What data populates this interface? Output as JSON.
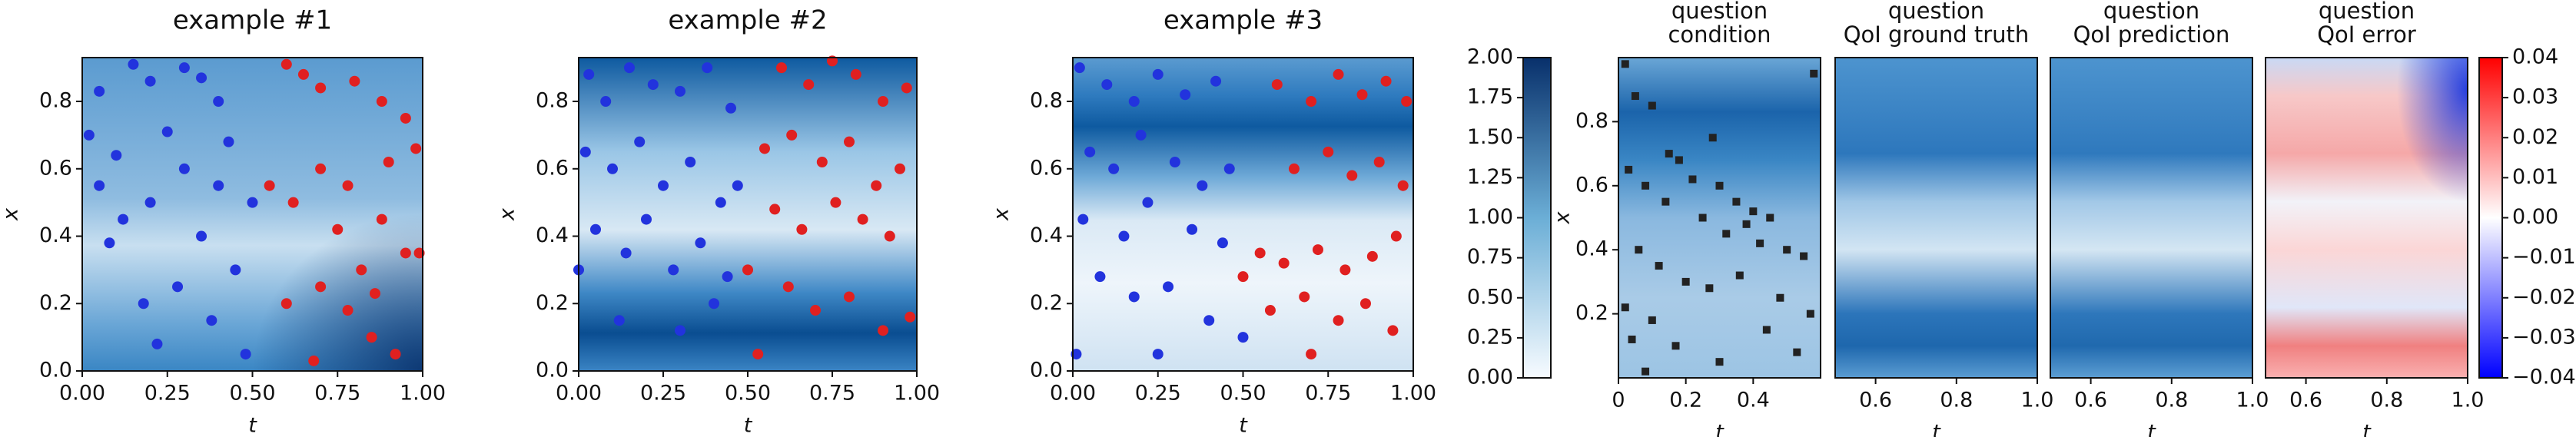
{
  "chart_data": [
    {
      "type": "scatter",
      "title": "example #1",
      "xlabel": "t",
      "ylabel": "x",
      "xlim": [
        0,
        1
      ],
      "ylim": [
        0,
        0.93
      ],
      "xticks": [
        {
          "value": 0,
          "label": "0.00"
        },
        {
          "value": 0.25,
          "label": "0.25"
        },
        {
          "value": 0.5,
          "label": "0.50"
        },
        {
          "value": 0.75,
          "label": "0.75"
        },
        {
          "value": 1,
          "label": "1.00"
        }
      ],
      "yticks": [
        {
          "value": 0,
          "label": "0.0"
        },
        0.2,
        0.4,
        0.6,
        0.8
      ],
      "series": [
        {
          "color": "#2233dd",
          "x": [
            0.05,
            0.1,
            0.15,
            0.2,
            0.3,
            0.35,
            0.4,
            0.25,
            0.05,
            0.12,
            0.2,
            0.3,
            0.4,
            0.08,
            0.18,
            0.28,
            0.35,
            0.45,
            0.38,
            0.48,
            0.22,
            0.5,
            0.02,
            0.43
          ],
          "values": [
            0.83,
            0.64,
            0.91,
            0.86,
            0.9,
            0.87,
            0.8,
            0.71,
            0.55,
            0.45,
            0.5,
            0.6,
            0.55,
            0.38,
            0.2,
            0.25,
            0.4,
            0.3,
            0.15,
            0.05,
            0.08,
            0.5,
            0.7,
            0.68
          ]
        },
        {
          "color": "#e02020",
          "x": [
            0.6,
            0.65,
            0.7,
            0.8,
            0.88,
            0.95,
            0.55,
            0.62,
            0.7,
            0.78,
            0.9,
            0.98,
            0.75,
            0.82,
            0.88,
            0.95,
            0.7,
            0.78,
            0.85,
            0.92,
            0.6,
            0.68,
            0.86,
            0.99
          ],
          "values": [
            0.91,
            0.88,
            0.84,
            0.86,
            0.8,
            0.75,
            0.55,
            0.5,
            0.6,
            0.55,
            0.62,
            0.66,
            0.42,
            0.3,
            0.45,
            0.35,
            0.25,
            0.18,
            0.1,
            0.05,
            0.2,
            0.03,
            0.23,
            0.35
          ]
        }
      ]
    },
    {
      "type": "scatter",
      "title": "example #2",
      "xlabel": "t",
      "ylabel": "x",
      "xlim": [
        0,
        1
      ],
      "ylim": [
        0,
        0.93
      ],
      "xticks": [
        {
          "value": 0,
          "label": "0.00"
        },
        {
          "value": 0.25,
          "label": "0.25"
        },
        {
          "value": 0.5,
          "label": "0.50"
        },
        {
          "value": 0.75,
          "label": "0.75"
        },
        {
          "value": 1,
          "label": "1.00"
        }
      ],
      "yticks": [
        {
          "value": 0,
          "label": "0.0"
        },
        0.2,
        0.4,
        0.6,
        0.8
      ],
      "series": [
        {
          "color": "#2233dd",
          "x": [
            0.03,
            0.08,
            0.15,
            0.22,
            0.3,
            0.38,
            0.45,
            0.02,
            0.1,
            0.18,
            0.25,
            0.33,
            0.42,
            0.05,
            0.14,
            0.2,
            0.28,
            0.36,
            0.44,
            0.12,
            0.3,
            0.4,
            0.0,
            0.47
          ],
          "values": [
            0.88,
            0.8,
            0.9,
            0.85,
            0.83,
            0.9,
            0.78,
            0.65,
            0.6,
            0.68,
            0.55,
            0.62,
            0.5,
            0.42,
            0.35,
            0.45,
            0.3,
            0.38,
            0.28,
            0.15,
            0.12,
            0.2,
            0.3,
            0.55
          ]
        },
        {
          "color": "#e02020",
          "x": [
            0.6,
            0.68,
            0.75,
            0.82,
            0.9,
            0.97,
            0.55,
            0.63,
            0.72,
            0.8,
            0.88,
            0.95,
            0.58,
            0.66,
            0.76,
            0.84,
            0.92,
            0.5,
            0.62,
            0.7,
            0.8,
            0.9,
            0.98,
            0.53
          ],
          "values": [
            0.9,
            0.85,
            0.92,
            0.88,
            0.8,
            0.84,
            0.66,
            0.7,
            0.62,
            0.68,
            0.55,
            0.6,
            0.48,
            0.42,
            0.5,
            0.45,
            0.4,
            0.3,
            0.25,
            0.18,
            0.22,
            0.12,
            0.16,
            0.05
          ]
        }
      ]
    },
    {
      "type": "scatter",
      "title": "example #3",
      "xlabel": "t",
      "ylabel": "x",
      "xlim": [
        0,
        1
      ],
      "ylim": [
        0,
        0.93
      ],
      "xticks": [
        {
          "value": 0,
          "label": "0.00"
        },
        {
          "value": 0.25,
          "label": "0.25"
        },
        {
          "value": 0.5,
          "label": "0.50"
        },
        {
          "value": 0.75,
          "label": "0.75"
        },
        {
          "value": 1,
          "label": "1.00"
        }
      ],
      "yticks": [
        {
          "value": 0,
          "label": "0.0"
        },
        0.2,
        0.4,
        0.6,
        0.8
      ],
      "series": [
        {
          "color": "#2233dd",
          "x": [
            0.02,
            0.1,
            0.18,
            0.25,
            0.33,
            0.42,
            0.05,
            0.12,
            0.2,
            0.3,
            0.38,
            0.46,
            0.03,
            0.15,
            0.22,
            0.35,
            0.44,
            0.08,
            0.18,
            0.28,
            0.4,
            0.5,
            0.01,
            0.25
          ],
          "values": [
            0.9,
            0.85,
            0.8,
            0.88,
            0.82,
            0.86,
            0.65,
            0.6,
            0.7,
            0.62,
            0.55,
            0.6,
            0.45,
            0.4,
            0.5,
            0.42,
            0.38,
            0.28,
            0.22,
            0.25,
            0.15,
            0.1,
            0.05,
            0.05
          ]
        },
        {
          "color": "#e02020",
          "x": [
            0.6,
            0.7,
            0.78,
            0.85,
            0.92,
            0.98,
            0.65,
            0.75,
            0.82,
            0.9,
            0.97,
            0.55,
            0.62,
            0.72,
            0.8,
            0.88,
            0.95,
            0.58,
            0.68,
            0.78,
            0.86,
            0.94,
            0.7,
            0.5
          ],
          "values": [
            0.85,
            0.8,
            0.88,
            0.82,
            0.86,
            0.8,
            0.6,
            0.65,
            0.58,
            0.62,
            0.55,
            0.35,
            0.32,
            0.36,
            0.3,
            0.34,
            0.4,
            0.18,
            0.22,
            0.15,
            0.2,
            0.12,
            0.05,
            0.28
          ]
        }
      ]
    },
    {
      "type": "colorbar",
      "ylim": [
        0,
        2
      ],
      "tick_side": "left",
      "yticks": [
        {
          "value": 0,
          "label": "0.00"
        },
        {
          "value": 0.25,
          "label": "0.25"
        },
        {
          "value": 0.5,
          "label": "0.50"
        },
        {
          "value": 0.75,
          "label": "0.75"
        },
        {
          "value": 1,
          "label": "1.00"
        },
        {
          "value": 1.25,
          "label": "1.25"
        },
        {
          "value": 1.5,
          "label": "1.50"
        },
        {
          "value": 1.75,
          "label": "1.75"
        },
        {
          "value": 2,
          "label": "2.00"
        }
      ]
    },
    {
      "type": "scatter",
      "title": [
        "question",
        "condition"
      ],
      "xlabel": "t",
      "ylabel": "x",
      "xlim": [
        0,
        0.6
      ],
      "ylim": [
        0,
        1
      ],
      "xticks": [
        0,
        0.2,
        0.4
      ],
      "yticks": [
        0.2,
        0.4,
        0.6,
        0.8
      ],
      "series": [
        {
          "color": "#222222",
          "marker": "square",
          "x": [
            0.02,
            0.05,
            0.1,
            0.15,
            0.18,
            0.22,
            0.28,
            0.3,
            0.35,
            0.4,
            0.45,
            0.58,
            0.03,
            0.08,
            0.14,
            0.25,
            0.32,
            0.38,
            0.42,
            0.5,
            0.55,
            0.06,
            0.12,
            0.2,
            0.27,
            0.36,
            0.48,
            0.57,
            0.04,
            0.1,
            0.17,
            0.3,
            0.44,
            0.53,
            0.02,
            0.08
          ],
          "values": [
            0.98,
            0.88,
            0.85,
            0.7,
            0.68,
            0.62,
            0.75,
            0.6,
            0.55,
            0.52,
            0.5,
            0.95,
            0.65,
            0.6,
            0.55,
            0.5,
            0.45,
            0.48,
            0.42,
            0.4,
            0.38,
            0.4,
            0.35,
            0.3,
            0.28,
            0.32,
            0.25,
            0.2,
            0.12,
            0.18,
            0.1,
            0.05,
            0.15,
            0.08,
            0.22,
            0.02
          ]
        }
      ]
    },
    {
      "type": "heatmap",
      "title": [
        "question",
        "QoI ground truth"
      ],
      "xlabel": "t",
      "xlim": [
        0.5,
        1
      ],
      "xticks": [
        0.6,
        0.8,
        {
          "value": 1,
          "label": "1.0"
        }
      ]
    },
    {
      "type": "heatmap",
      "title": [
        "question",
        "QoI prediction"
      ],
      "xlabel": "t",
      "xlim": [
        0.5,
        1
      ],
      "xticks": [
        0.6,
        0.8,
        {
          "value": 1,
          "label": "1.0"
        }
      ]
    },
    {
      "type": "heatmap",
      "title": [
        "question",
        "QoI error"
      ],
      "xlabel": "t",
      "xlim": [
        0.5,
        1
      ],
      "xticks": [
        0.6,
        0.8,
        {
          "value": 1,
          "label": "1.0"
        }
      ]
    },
    {
      "type": "colorbar",
      "ylim": [
        -0.04,
        0.04
      ],
      "tick_side": "right",
      "yticks": [
        {
          "value": -0.04,
          "label": "−0.04"
        },
        {
          "value": -0.03,
          "label": "−0.03"
        },
        {
          "value": -0.02,
          "label": "−0.02"
        },
        {
          "value": -0.01,
          "label": "−0.01"
        },
        {
          "value": 0,
          "label": "0.00"
        },
        0.01,
        0.02,
        0.03,
        0.04
      ]
    }
  ]
}
